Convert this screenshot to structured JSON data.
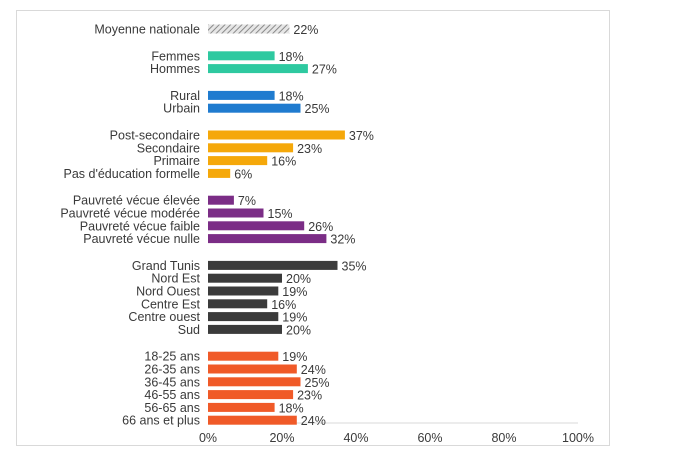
{
  "chart_data": {
    "type": "bar",
    "orientation": "horizontal",
    "xlim": [
      0,
      100
    ],
    "x_ticks": [
      "0%",
      "20%",
      "40%",
      "60%",
      "80%",
      "100%"
    ],
    "grid": false,
    "value_suffix": "%",
    "groups": [
      {
        "color": "#b0b0b0",
        "pattern": "hatched",
        "categories": [
          "Moyenne nationale"
        ],
        "values": [
          22
        ]
      },
      {
        "color": "#2ec9a0",
        "categories": [
          "Femmes",
          "Hommes"
        ],
        "values": [
          18,
          27
        ]
      },
      {
        "color": "#1f7bcf",
        "categories": [
          "Rural",
          "Urbain"
        ],
        "values": [
          18,
          25
        ]
      },
      {
        "color": "#f5a80a",
        "categories": [
          "Post-secondaire",
          "Secondaire",
          "Primaire",
          "Pas d'éducation formelle"
        ],
        "values": [
          37,
          23,
          16,
          6
        ]
      },
      {
        "color": "#7b2d86",
        "categories": [
          "Pauvreté vécue élevée",
          "Pauvreté vécue modérée",
          "Pauvreté vécue faible",
          "Pauvreté vécue nulle"
        ],
        "values": [
          7,
          15,
          26,
          32
        ]
      },
      {
        "color": "#3b3b3b",
        "categories": [
          "Grand Tunis",
          "Nord Est",
          "Nord Ouest",
          "Centre Est",
          "Centre ouest",
          "Sud"
        ],
        "values": [
          35,
          20,
          19,
          16,
          19,
          20
        ]
      },
      {
        "color": "#f05a28",
        "categories": [
          "18-25 ans",
          "26-35 ans",
          "36-45 ans",
          "46-55 ans",
          "56-65 ans",
          "66 ans et plus"
        ],
        "values": [
          19,
          24,
          25,
          23,
          18,
          24
        ]
      }
    ]
  }
}
